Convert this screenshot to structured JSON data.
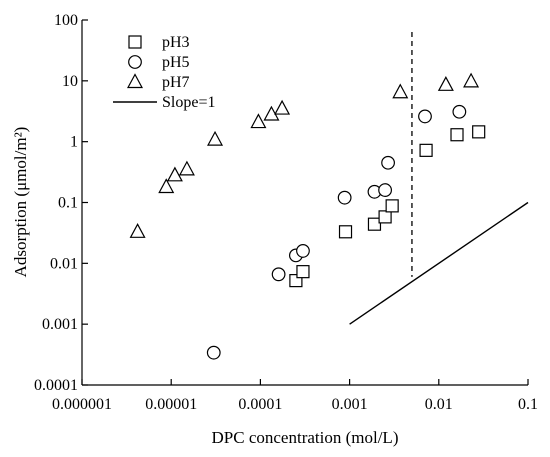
{
  "chart_data": {
    "type": "scatter",
    "xlabel": "DPC concentration (mol/L)",
    "ylabel": "Adsorption (μmol/m²)",
    "x_scale": "log",
    "y_scale": "log",
    "xlim": [
      1e-06,
      0.1
    ],
    "ylim": [
      0.0001,
      100
    ],
    "x_ticks": [
      1e-06,
      1e-05,
      0.0001,
      0.001,
      0.01,
      0.1
    ],
    "x_tick_labels": [
      "0.000001",
      "0.00001",
      "0.0001",
      "0.001",
      "0.01",
      "0.1"
    ],
    "y_ticks": [
      0.0001,
      0.001,
      0.01,
      0.1,
      1,
      10,
      100
    ],
    "y_tick_labels": [
      "0.0001",
      "0.001",
      "0.01",
      "0.1",
      "1",
      "10",
      "100"
    ],
    "grid": false,
    "legend_position": "top-left",
    "series": [
      {
        "name": "pH3",
        "marker": "square",
        "x": [
          0.00025,
          0.0003,
          0.0009,
          0.0019,
          0.0025,
          0.003,
          0.0072,
          0.016,
          0.028
        ],
        "y": [
          0.0052,
          0.0073,
          0.033,
          0.044,
          0.058,
          0.088,
          0.72,
          1.3,
          1.45
        ]
      },
      {
        "name": "pH5",
        "marker": "circle",
        "x": [
          3e-05,
          0.00016,
          0.00025,
          0.0003,
          0.00088,
          0.0019,
          0.0025,
          0.0027,
          0.007,
          0.017
        ],
        "y": [
          0.00034,
          0.0066,
          0.0135,
          0.016,
          0.12,
          0.15,
          0.16,
          0.45,
          2.6,
          3.1
        ]
      },
      {
        "name": "pH7",
        "marker": "triangle",
        "x": [
          4.2e-06,
          8.8e-06,
          1.1e-05,
          1.5e-05,
          3.1e-05,
          9.5e-05,
          0.000133,
          0.000175,
          0.0037,
          0.012,
          0.023
        ],
        "y": [
          0.033,
          0.18,
          0.28,
          0.35,
          1.08,
          2.1,
          2.8,
          3.5,
          6.5,
          8.6,
          9.8
        ]
      },
      {
        "name": "Slope=1",
        "marker": "line",
        "x": [
          0.001,
          0.1
        ],
        "y": [
          0.001,
          0.1
        ]
      }
    ],
    "reference_lines": [
      {
        "orientation": "vertical",
        "style": "dashed",
        "x": 0.005
      }
    ]
  }
}
